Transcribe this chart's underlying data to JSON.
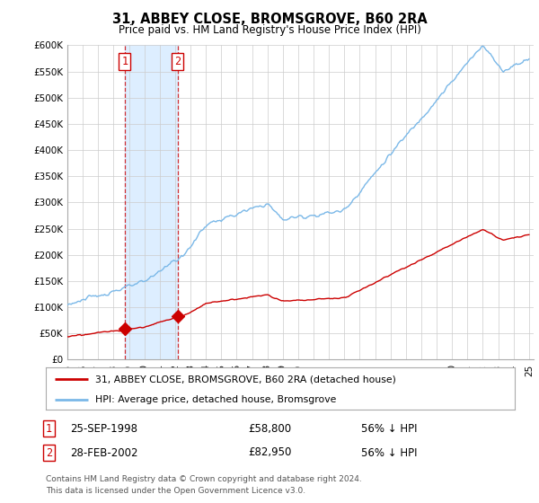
{
  "title": "31, ABBEY CLOSE, BROMSGROVE, B60 2RA",
  "subtitle": "Price paid vs. HM Land Registry's House Price Index (HPI)",
  "ylim": [
    0,
    600000
  ],
  "yticks": [
    0,
    50000,
    100000,
    150000,
    200000,
    250000,
    300000,
    350000,
    400000,
    450000,
    500000,
    550000,
    600000
  ],
  "ytick_labels": [
    "£0",
    "£50K",
    "£100K",
    "£150K",
    "£200K",
    "£250K",
    "£300K",
    "£350K",
    "£400K",
    "£450K",
    "£500K",
    "£550K",
    "£600K"
  ],
  "sale1_date": 1998.73,
  "sale1_price": 58800,
  "sale2_date": 2002.16,
  "sale2_price": 82950,
  "hpi_color": "#7ab8e8",
  "price_color": "#cc0000",
  "vline_color": "#cc0000",
  "legend_label_red": "31, ABBEY CLOSE, BROMSGROVE, B60 2RA (detached house)",
  "legend_label_blue": "HPI: Average price, detached house, Bromsgrove",
  "table_row1": [
    "1",
    "25-SEP-1998",
    "£58,800",
    "56% ↓ HPI"
  ],
  "table_row2": [
    "2",
    "28-FEB-2002",
    "£82,950",
    "56% ↓ HPI"
  ],
  "footnote": "Contains HM Land Registry data © Crown copyright and database right 2024.\nThis data is licensed under the Open Government Licence v3.0.",
  "background_color": "#ffffff",
  "grid_color": "#cccccc",
  "span_color": "#ddeeff"
}
